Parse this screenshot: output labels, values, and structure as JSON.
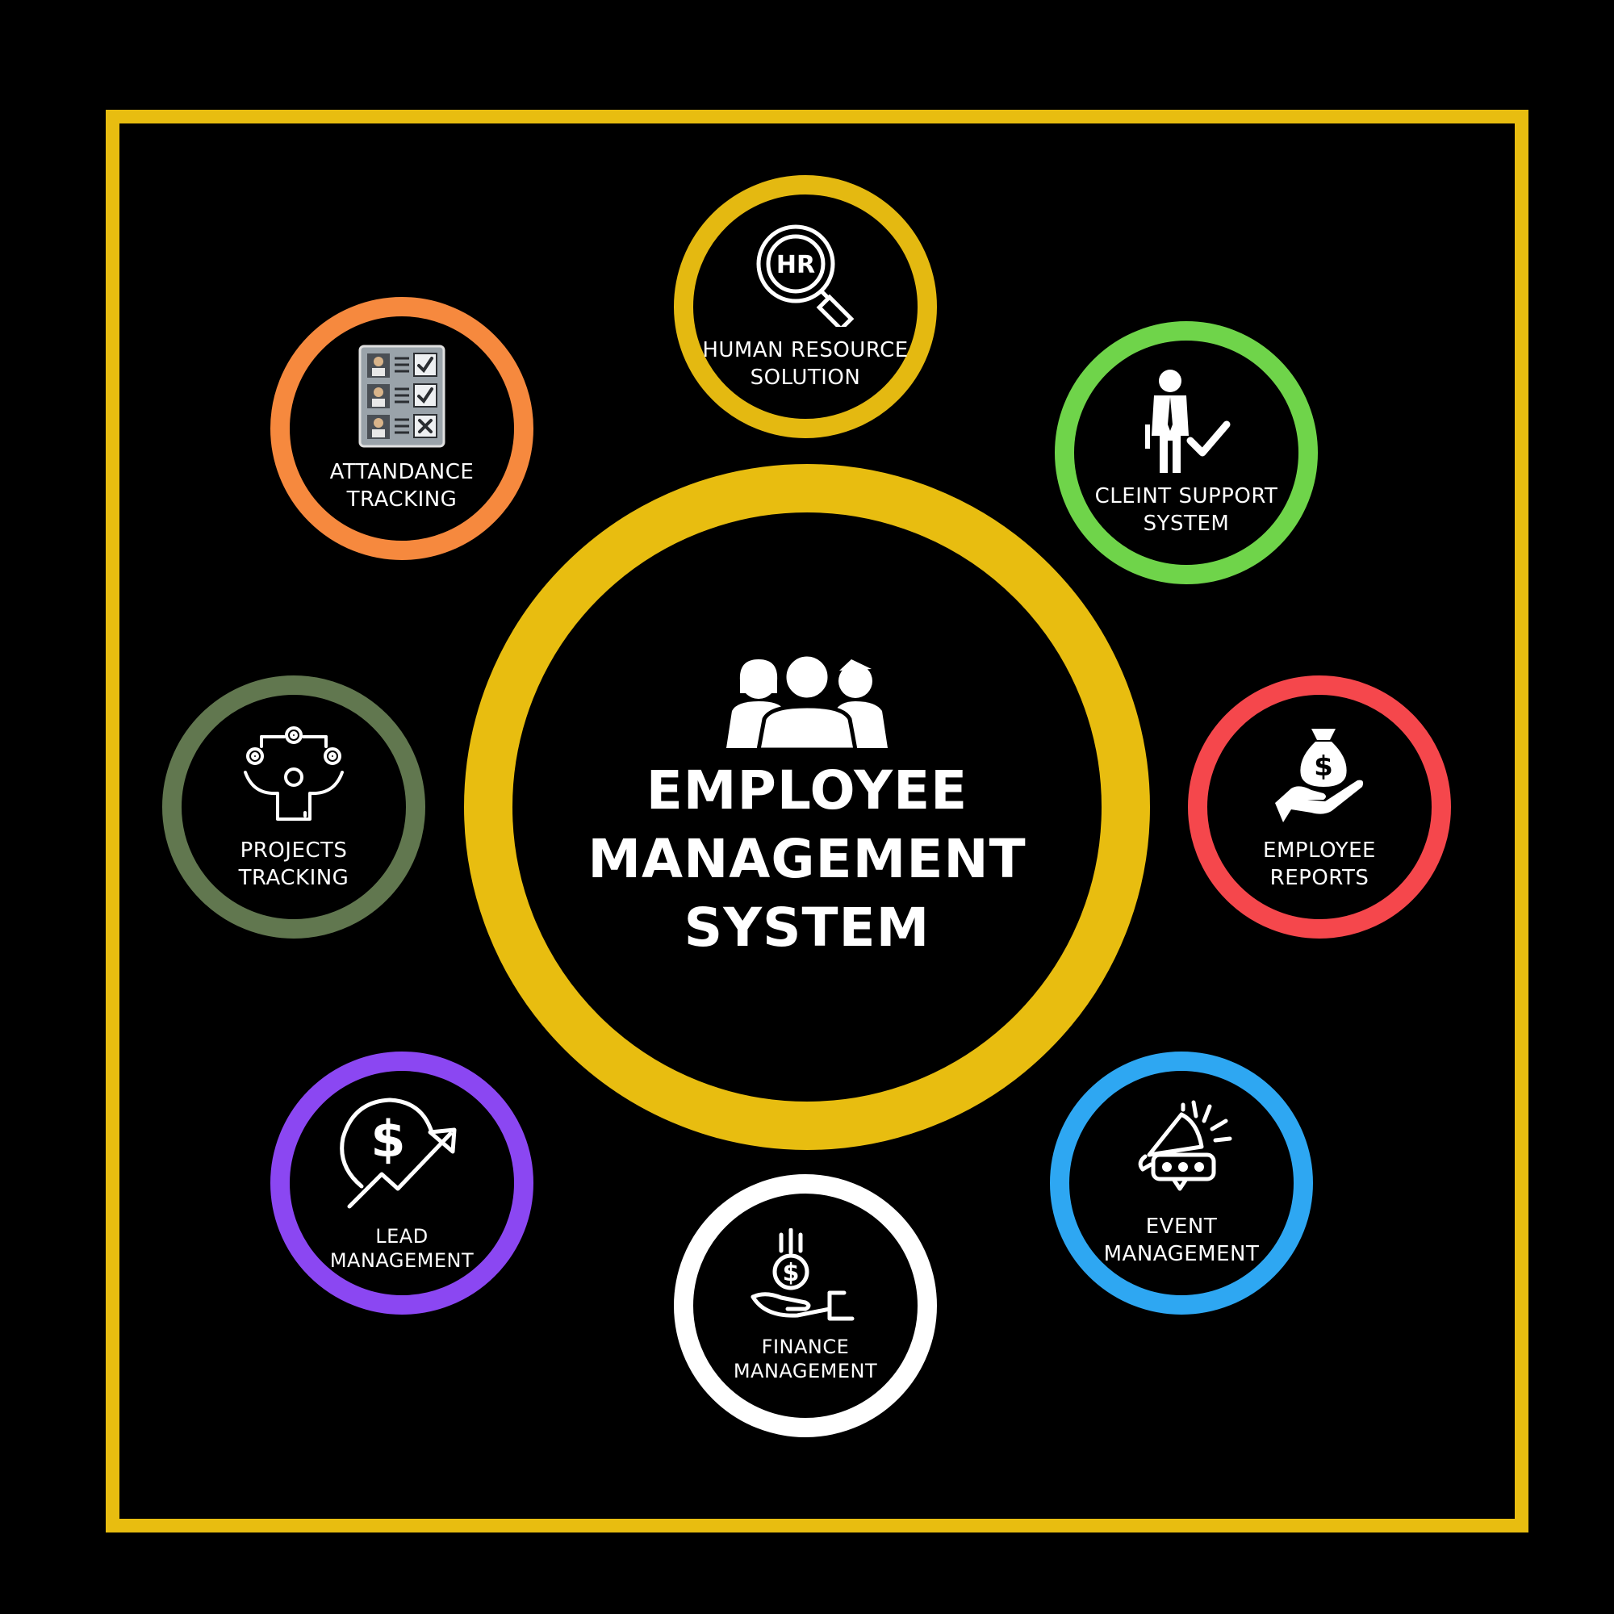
{
  "title": {
    "line1": "EMPLOYEE",
    "line2": "MANAGEMENT",
    "line3": "SYSTEM"
  },
  "colors": {
    "frame": "#e8bd10",
    "center_ring": "#e8bd10",
    "hr": "#e4b911",
    "client": "#6fd44a",
    "reports": "#f5474c",
    "event": "#2ea7f2",
    "finance": "#ffffff",
    "lead": "#8b47f2",
    "projects": "#61774f",
    "attendance": "#f6893e"
  },
  "nodes": {
    "hr": {
      "icon": "hr-magnifier-icon",
      "line1": "HUMAN RESOURCE",
      "line2": "SOLUTION"
    },
    "client": {
      "icon": "businessman-check-icon",
      "line1": "CLEINT SUPPORT",
      "line2": "SYSTEM"
    },
    "reports": {
      "icon": "money-bag-hand-icon",
      "line1": "EMPLOYEE",
      "line2": "REPORTS"
    },
    "event": {
      "icon": "megaphone-rating-icon",
      "line1": "EVENT",
      "line2": "MANAGEMENT"
    },
    "finance": {
      "icon": "coin-hand-icon",
      "line1": "FINANCE",
      "line2": "MANAGEMENT"
    },
    "lead": {
      "icon": "dollar-growth-icon",
      "line1": "LEAD",
      "line2": "MANAGEMENT"
    },
    "projects": {
      "icon": "juggling-gears-icon",
      "line1": "PROJECTS",
      "line2": "TRACKING"
    },
    "attendance": {
      "icon": "attendance-sheet-icon",
      "line1": "ATTANDANCE",
      "line2": "TRACKING"
    }
  }
}
